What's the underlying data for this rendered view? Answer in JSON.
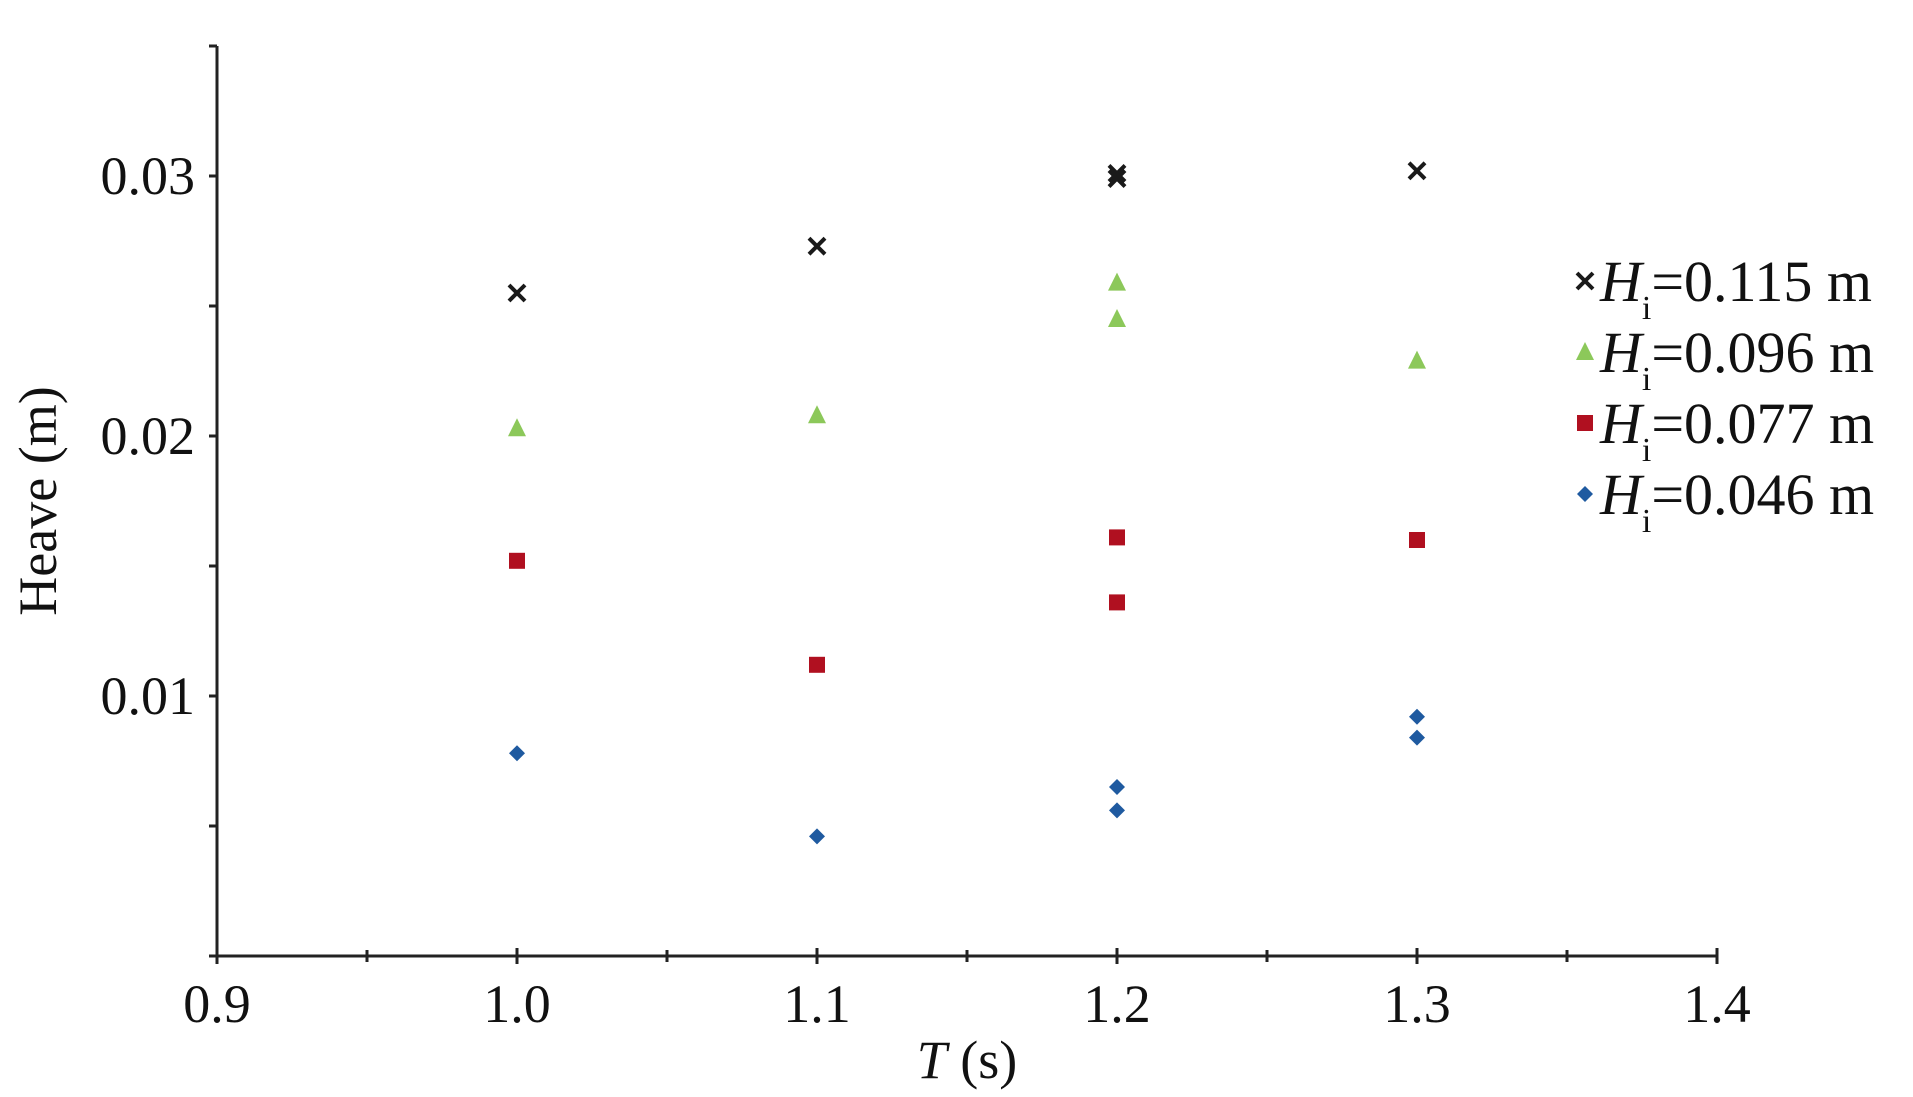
{
  "chart_data": {
    "type": "scatter",
    "xlabel": "T (s)",
    "ylabel": "Heave (m)",
    "xlim": [
      0.9,
      1.4
    ],
    "xticks": [
      {
        "value": 0.9,
        "label": "0.9"
      },
      {
        "value": 1,
        "label": "1.0"
      },
      {
        "value": 1.1,
        "label": "1.1"
      },
      {
        "value": 1.2,
        "label": "1.2"
      },
      {
        "value": 1.3,
        "label": "1.3"
      },
      {
        "value": 1.4,
        "label": "1.4"
      }
    ],
    "xminor_ticks": [
      0.95,
      1.05,
      1.15,
      1.25,
      1.35
    ],
    "ylim": [
      0,
      0.035
    ],
    "yticks": [
      0.01,
      0.02,
      0.03
    ],
    "yminor_ticks": [
      0,
      0.005,
      0.015,
      0.025,
      0.035
    ],
    "series": [
      {
        "name": "Hi=0.115 m",
        "color": "#1a1a1a",
        "marker": "x",
        "x": [
          1.0,
          1.1,
          1.2,
          1.2,
          1.3
        ],
        "values": [
          0.0255,
          0.0273,
          0.0301,
          0.0299,
          0.0302
        ]
      },
      {
        "name": "Hi=0.096 m",
        "color": "#8cc85a",
        "marker": "triangle",
        "x": [
          1.0,
          1.1,
          1.2,
          1.2,
          1.3
        ],
        "values": [
          0.0203,
          0.0208,
          0.0259,
          0.0245,
          0.0229
        ]
      },
      {
        "name": "Hi=0.077 m",
        "color": "#b01020",
        "marker": "square",
        "x": [
          1.0,
          1.1,
          1.2,
          1.2,
          1.3
        ],
        "values": [
          0.0152,
          0.0112,
          0.0161,
          0.0136,
          0.016
        ]
      },
      {
        "name": "Hi=0.046 m",
        "color": "#1f5aa0",
        "marker": "diamond",
        "x": [
          1.0,
          1.1,
          1.2,
          1.2,
          1.3,
          1.3
        ],
        "values": [
          0.0078,
          0.0046,
          0.0065,
          0.0056,
          0.0092,
          0.0084
        ]
      }
    ]
  }
}
